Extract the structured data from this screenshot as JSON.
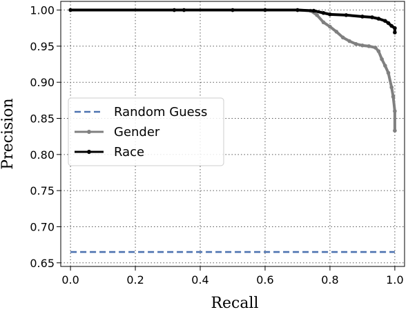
{
  "chart_data": {
    "type": "line",
    "title": "",
    "xlabel": "Recall",
    "ylabel": "Precision",
    "xlim": [
      -0.03,
      1.03
    ],
    "ylim": [
      0.645,
      1.012
    ],
    "xticks": [
      0.0,
      0.2,
      0.4,
      0.6,
      0.8,
      1.0
    ],
    "yticks": [
      0.65,
      0.7,
      0.75,
      0.8,
      0.85,
      0.9,
      0.95,
      1.0
    ],
    "xtick_labels": [
      "0.0",
      "0.2",
      "0.4",
      "0.6",
      "0.8",
      "1.0"
    ],
    "ytick_labels": [
      "0.65",
      "0.70",
      "0.75",
      "0.80",
      "0.85",
      "0.90",
      "0.95",
      "1.00"
    ],
    "grid": true,
    "grid_style": "dotted",
    "legend_position": "center-left",
    "series": [
      {
        "name": "Random Guess",
        "color": "#4c72b0",
        "style": "dashed",
        "x": [
          0.0,
          1.0
        ],
        "y": [
          0.665,
          0.665
        ]
      },
      {
        "name": "Gender",
        "color": "#808080",
        "style": "solid-markers",
        "x": [
          0.0,
          0.32,
          0.35,
          0.5,
          0.6,
          0.7,
          0.74,
          0.76,
          0.78,
          0.8,
          0.82,
          0.84,
          0.86,
          0.88,
          0.9,
          0.92,
          0.94,
          0.95,
          0.96,
          0.97,
          0.98,
          0.99,
          0.995,
          1.0,
          1.0
        ],
        "y": [
          1.0,
          1.0,
          1.0,
          1.0,
          1.0,
          1.0,
          0.999,
          0.993,
          0.983,
          0.977,
          0.97,
          0.962,
          0.957,
          0.953,
          0.951,
          0.95,
          0.948,
          0.943,
          0.932,
          0.923,
          0.913,
          0.893,
          0.88,
          0.86,
          0.833
        ]
      },
      {
        "name": "Race",
        "color": "#000000",
        "style": "solid-markers",
        "x": [
          0.0,
          0.32,
          0.35,
          0.5,
          0.6,
          0.7,
          0.75,
          0.78,
          0.8,
          0.85,
          0.9,
          0.93,
          0.95,
          0.97,
          0.98,
          0.99,
          1.0,
          1.0
        ],
        "y": [
          1.0,
          1.0,
          1.0,
          1.0,
          1.0,
          1.0,
          0.999,
          0.996,
          0.994,
          0.993,
          0.991,
          0.99,
          0.988,
          0.985,
          0.982,
          0.978,
          0.975,
          0.969
        ]
      }
    ]
  }
}
